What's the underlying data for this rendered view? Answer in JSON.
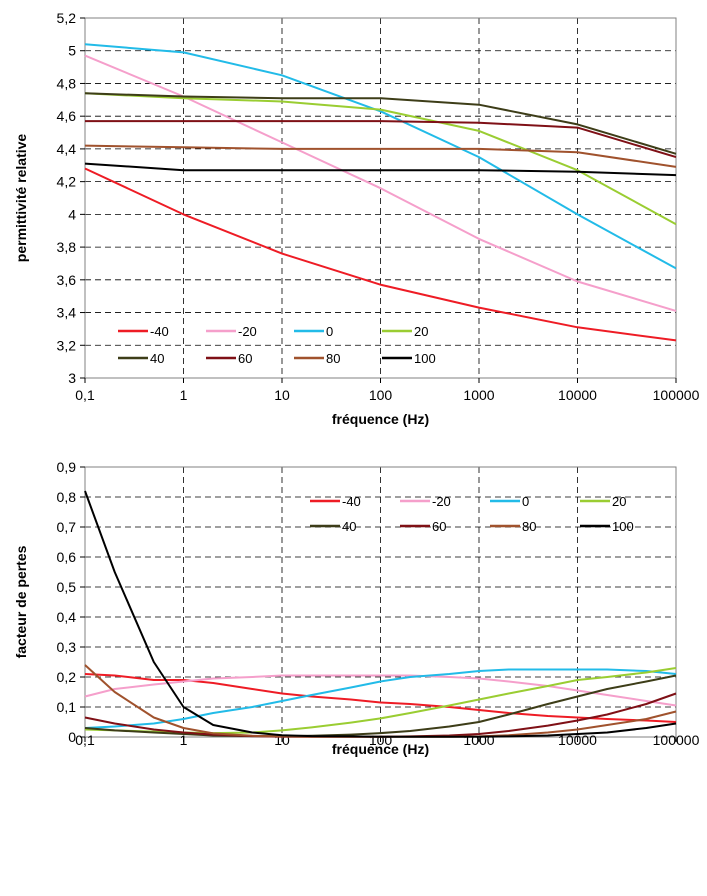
{
  "chart_data": [
    {
      "type": "line",
      "title": "",
      "xlabel": "fréquence (Hz)",
      "ylabel": "permittivité relative",
      "x_scale": "log",
      "xlim": [
        0.1,
        100000
      ],
      "ylim": [
        3,
        5.2
      ],
      "x_ticks": [
        "0,1",
        "1",
        "10",
        "100",
        "1000",
        "10000",
        "100000"
      ],
      "y_ticks": [
        "3",
        "3,2",
        "3,4",
        "3,6",
        "3,8",
        "4",
        "4,2",
        "4,4",
        "4,6",
        "4,8",
        "5",
        "5,2"
      ],
      "grid": true,
      "legend_position": "bottom-left",
      "x": [
        0.1,
        1,
        10,
        100,
        1000,
        10000,
        100000
      ],
      "series": [
        {
          "name": "-40",
          "color": "#ee1c25",
          "values": [
            4.28,
            4.0,
            3.76,
            3.57,
            3.43,
            3.31,
            3.23
          ]
        },
        {
          "name": "-20",
          "color": "#f59fcb",
          "values": [
            4.97,
            4.72,
            4.44,
            4.16,
            3.85,
            3.59,
            3.41
          ]
        },
        {
          "name": "0",
          "color": "#22bbe8",
          "values": [
            5.04,
            4.99,
            4.85,
            4.63,
            4.35,
            4.0,
            3.67
          ]
        },
        {
          "name": "20",
          "color": "#9acd32",
          "values": [
            4.74,
            4.71,
            4.69,
            4.64,
            4.51,
            4.27,
            3.94
          ]
        },
        {
          "name": "40",
          "color": "#3d3d18",
          "values": [
            4.74,
            4.72,
            4.71,
            4.71,
            4.67,
            4.55,
            4.37
          ]
        },
        {
          "name": "60",
          "color": "#7f1016",
          "values": [
            4.57,
            4.57,
            4.57,
            4.57,
            4.56,
            4.53,
            4.35
          ]
        },
        {
          "name": "80",
          "color": "#a0522d",
          "values": [
            4.42,
            4.41,
            4.4,
            4.4,
            4.4,
            4.38,
            4.29
          ]
        },
        {
          "name": "100",
          "color": "#000000",
          "values": [
            4.31,
            4.27,
            4.27,
            4.27,
            4.27,
            4.26,
            4.24
          ]
        }
      ]
    },
    {
      "type": "line",
      "title": "",
      "xlabel": "fréquence (Hz)",
      "ylabel": "facteur de pertes",
      "x_scale": "log",
      "xlim": [
        0.1,
        100000
      ],
      "ylim": [
        0,
        0.9
      ],
      "x_ticks": [
        "0,1",
        "1",
        "10",
        "100",
        "1000",
        "10000",
        "100000"
      ],
      "y_ticks": [
        "0",
        "0,1",
        "0,2",
        "0,3",
        "0,4",
        "0,5",
        "0,6",
        "0,7",
        "0,8",
        "0,9"
      ],
      "grid": true,
      "legend_position": "top-right",
      "x": [
        0.1,
        0.2,
        0.5,
        1,
        2,
        5,
        10,
        20,
        50,
        100,
        200,
        500,
        1000,
        2000,
        5000,
        10000,
        20000,
        50000,
        100000
      ],
      "series": [
        {
          "name": "-40",
          "color": "#ee1c25",
          "values": [
            0.21,
            0.205,
            0.19,
            0.19,
            0.18,
            0.16,
            0.145,
            0.135,
            0.125,
            0.115,
            0.11,
            0.1,
            0.09,
            0.08,
            0.07,
            0.065,
            0.06,
            0.055,
            0.05
          ]
        },
        {
          "name": "-20",
          "color": "#f59fcb",
          "values": [
            0.135,
            0.16,
            0.175,
            0.185,
            0.195,
            0.2,
            0.205,
            0.205,
            0.205,
            0.205,
            0.205,
            0.2,
            0.195,
            0.185,
            0.17,
            0.155,
            0.14,
            0.12,
            0.105
          ]
        },
        {
          "name": "0",
          "color": "#22bbe8",
          "values": [
            0.03,
            0.035,
            0.045,
            0.06,
            0.08,
            0.1,
            0.12,
            0.14,
            0.165,
            0.185,
            0.2,
            0.21,
            0.22,
            0.225,
            0.225,
            0.225,
            0.225,
            0.22,
            0.21
          ]
        },
        {
          "name": "20",
          "color": "#9acd32",
          "values": [
            0.025,
            0.022,
            0.018,
            0.015,
            0.013,
            0.015,
            0.022,
            0.032,
            0.048,
            0.062,
            0.08,
            0.105,
            0.125,
            0.145,
            0.17,
            0.19,
            0.2,
            0.215,
            0.23
          ]
        },
        {
          "name": "40",
          "color": "#3d3d18",
          "values": [
            0.03,
            0.022,
            0.015,
            0.01,
            0.005,
            0.003,
            0.003,
            0.004,
            0.008,
            0.013,
            0.02,
            0.035,
            0.05,
            0.075,
            0.11,
            0.135,
            0.16,
            0.185,
            0.205
          ]
        },
        {
          "name": "60",
          "color": "#7f1016",
          "values": [
            0.065,
            0.045,
            0.025,
            0.015,
            0.008,
            0.003,
            0.001,
            0.001,
            0.001,
            0.001,
            0.002,
            0.005,
            0.01,
            0.02,
            0.038,
            0.055,
            0.075,
            0.11,
            0.145
          ]
        },
        {
          "name": "80",
          "color": "#a0522d",
          "values": [
            0.24,
            0.15,
            0.065,
            0.03,
            0.012,
            0.004,
            0.002,
            0.001,
            0.001,
            0.001,
            0.001,
            0.001,
            0.002,
            0.006,
            0.015,
            0.025,
            0.04,
            0.06,
            0.085
          ]
        },
        {
          "name": "100",
          "color": "#000000",
          "values": [
            0.82,
            0.55,
            0.25,
            0.1,
            0.04,
            0.015,
            0.006,
            0.003,
            0.002,
            0.001,
            0.001,
            0.001,
            0.001,
            0.002,
            0.005,
            0.01,
            0.015,
            0.03,
            0.045
          ]
        }
      ]
    }
  ]
}
